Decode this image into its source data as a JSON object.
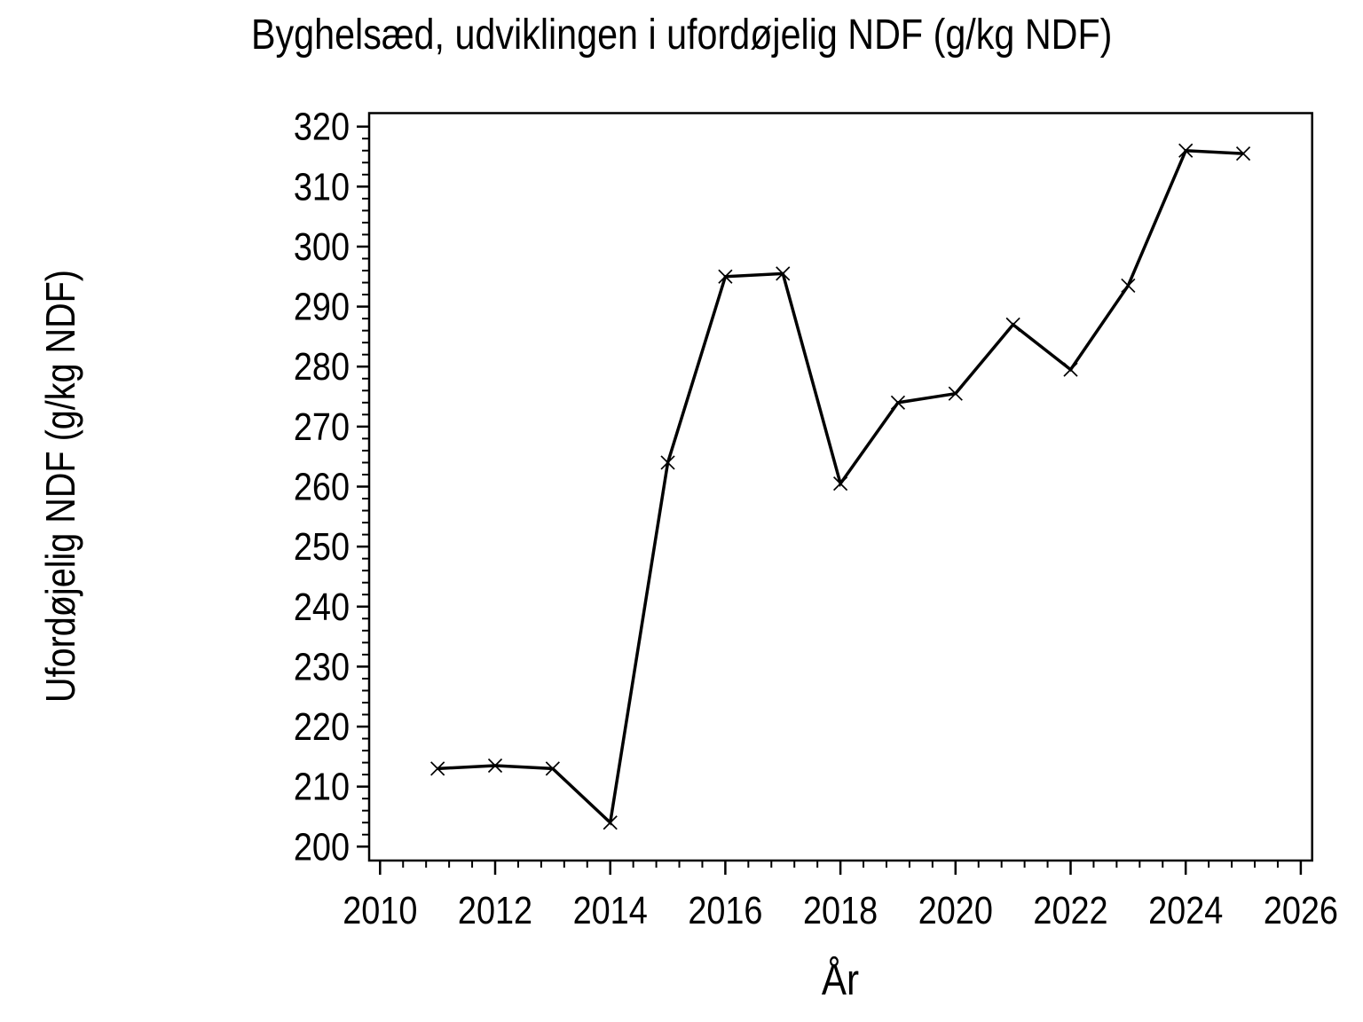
{
  "page": {
    "background_color": "#ffffff",
    "foreground_color": "#000000"
  },
  "chart_data": {
    "type": "line",
    "title": "Byghelsæd, udviklingen i ufordøjelig NDF (g/kg NDF)",
    "xlabel": "År",
    "ylabel": "Ufordøjelig NDF (g/kg NDF)",
    "x": [
      2011,
      2012,
      2013,
      2014,
      2015,
      2016,
      2017,
      2018,
      2019,
      2020,
      2021,
      2022,
      2023,
      2024,
      2025
    ],
    "series": [
      {
        "name": "Ufordøjelig NDF",
        "values": [
          213,
          213.5,
          213,
          204,
          264,
          295,
          295.5,
          260.5,
          274,
          275.5,
          287,
          279.5,
          293.5,
          316,
          315.5
        ]
      }
    ],
    "xlim": [
      2010,
      2026
    ],
    "ylim": [
      200,
      320
    ],
    "x_ticks": [
      2010,
      2012,
      2014,
      2016,
      2018,
      2020,
      2022,
      2024,
      2026
    ],
    "y_ticks": [
      200,
      210,
      220,
      230,
      240,
      250,
      260,
      270,
      280,
      290,
      300,
      310,
      320
    ],
    "x_minor_step": 0.4,
    "y_minor_step": 2,
    "grid": false,
    "legend": false,
    "frame": true,
    "marker": "x",
    "line_color": "#000000",
    "marker_color": "#000000",
    "background": "#ffffff"
  }
}
